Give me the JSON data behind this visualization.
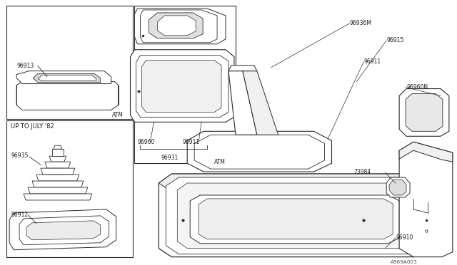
{
  "bg_color": "#ffffff",
  "line_color": "#2a2a2a",
  "text_color": "#1a1a1a",
  "fig_width": 6.4,
  "fig_height": 3.72,
  "dpi": 100,
  "diagram_number": "A969A003",
  "up_to_july": "UP TO JULY '82",
  "atm1": "ATM",
  "atm2": "ATM",
  "label_96913": "96913",
  "label_96935": "96935",
  "label_96912": "96912",
  "label_96960": "96960",
  "label_96911a": "96911",
  "label_96931": "96931",
  "label_96936M": "96936M",
  "label_96915": "96915",
  "label_96911b": "96911",
  "label_96960N": "96960N",
  "label_73984": "73984",
  "label_96910": "96910"
}
